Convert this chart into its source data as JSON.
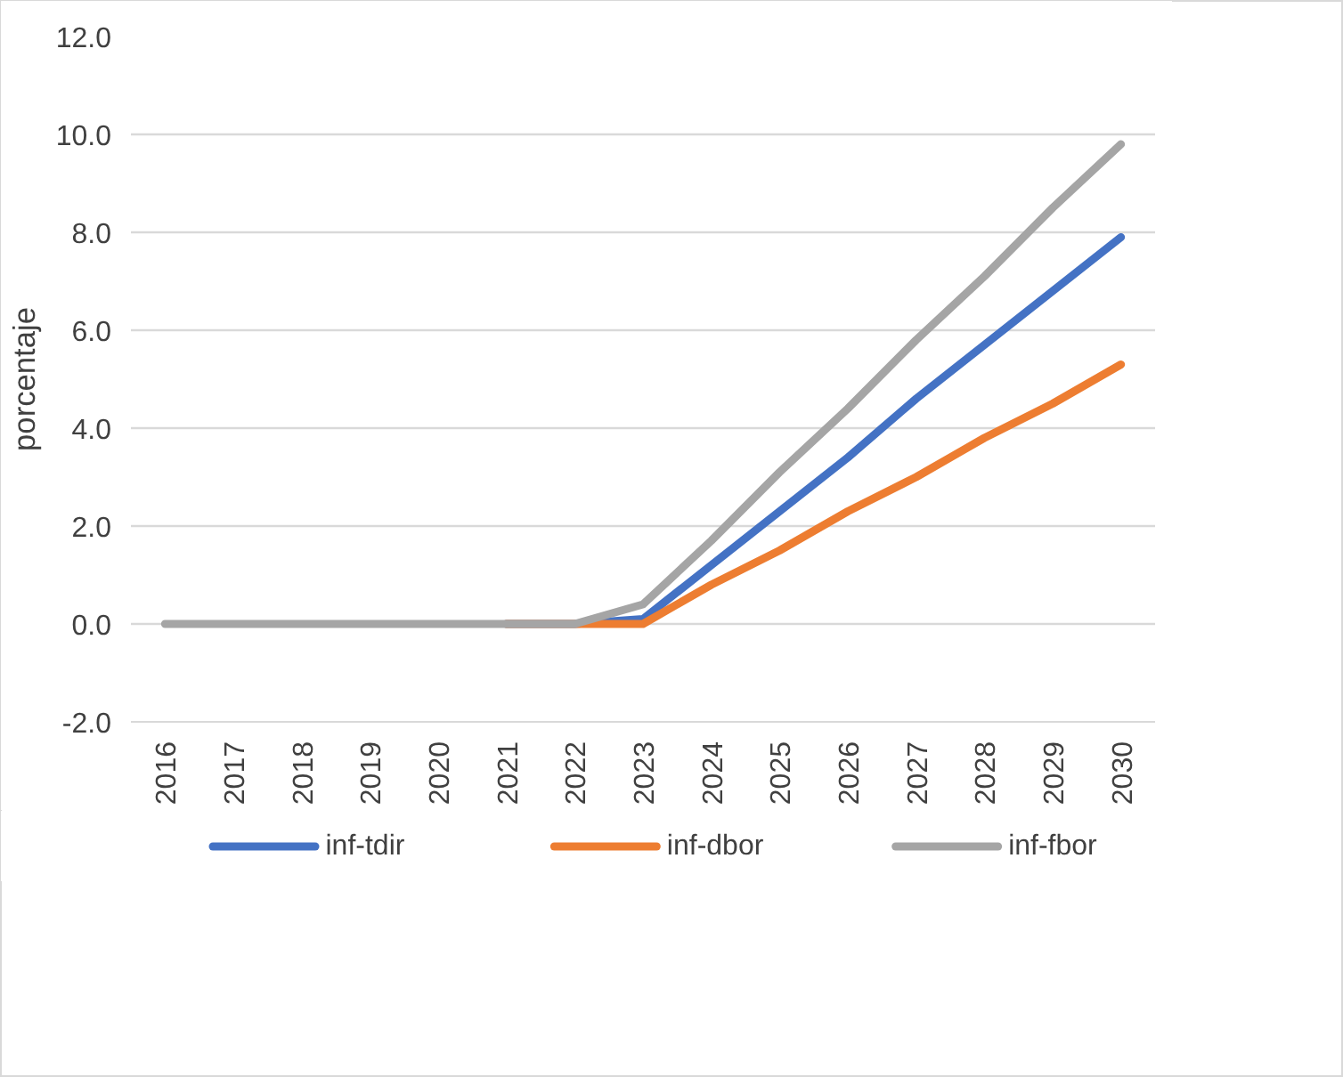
{
  "chart_data": {
    "type": "line",
    "ylabel": "porcentaje",
    "categories": [
      "2016",
      "2017",
      "2018",
      "2019",
      "2020",
      "2021",
      "2022",
      "2023",
      "2024",
      "2025",
      "2026",
      "2027",
      "2028",
      "2029",
      "2030"
    ],
    "series": [
      {
        "name": "inf-tdir",
        "color": "#4472c4",
        "values": [
          null,
          null,
          null,
          null,
          null,
          0,
          0,
          0.1,
          1.2,
          2.3,
          3.4,
          4.6,
          5.7,
          6.8,
          7.9
        ]
      },
      {
        "name": "inf-dbor",
        "color": "#ed7d31",
        "values": [
          null,
          null,
          null,
          null,
          null,
          0,
          0,
          0.0,
          0.8,
          1.5,
          2.3,
          3.0,
          3.8,
          4.5,
          5.3
        ]
      },
      {
        "name": "inf-fbor",
        "color": "#a5a5a5",
        "values": [
          0,
          0,
          0,
          0,
          0,
          0,
          0,
          0.4,
          1.7,
          3.1,
          4.4,
          5.8,
          7.1,
          8.5,
          9.8
        ]
      }
    ],
    "ylim": [
      -2,
      12
    ],
    "yticks": [
      {
        "value": -2,
        "label": "-2.0"
      },
      {
        "value": 0,
        "label": "0.0"
      },
      {
        "value": 2,
        "label": "2.0"
      },
      {
        "value": 4,
        "label": "4.0"
      },
      {
        "value": 6,
        "label": "6.0"
      },
      {
        "value": 8,
        "label": "8.0"
      },
      {
        "value": 10,
        "label": "10.0"
      },
      {
        "value": 12,
        "label": "12.0"
      }
    ],
    "grid": "y",
    "legend": "bottom",
    "marker": "none",
    "line_style": "solid"
  }
}
